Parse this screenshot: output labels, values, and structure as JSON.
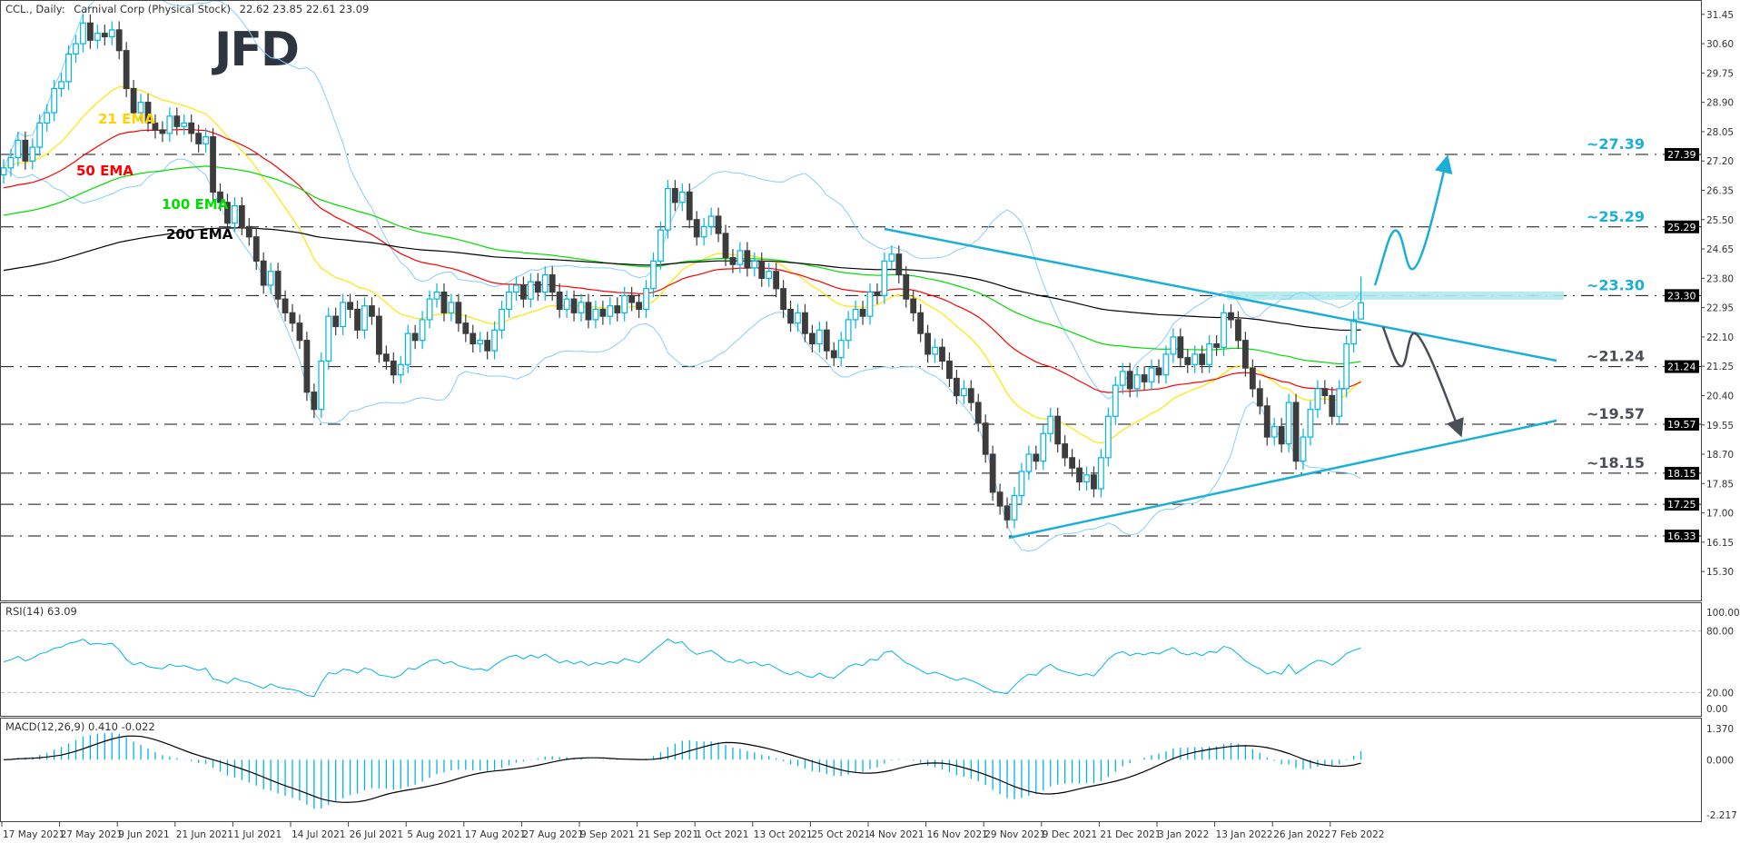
{
  "header": {
    "symbol": "CCL., Daily:",
    "name": "Carnival Corp (Physical Stock)",
    "ohlc": "22.62 23.85 22.61 23.09"
  },
  "logo": "JFD",
  "price_axis": {
    "ticks": [
      "31.45",
      "30.60",
      "29.75",
      "28.90",
      "28.05",
      "27.20",
      "26.35",
      "25.50",
      "24.65",
      "23.80",
      "22.95",
      "22.10",
      "21.25",
      "20.40",
      "19.55",
      "18.70",
      "17.85",
      "17.00",
      "16.15",
      "15.30"
    ]
  },
  "levels": [
    {
      "value": 27.39,
      "tag": "27.39",
      "label": "~27.39",
      "color": "#1aafd6"
    },
    {
      "value": 25.29,
      "tag": "25.29",
      "label": "~25.29",
      "color": "#1aafd6"
    },
    {
      "value": 23.3,
      "tag": "23.30",
      "label": "~23.30",
      "color": "#1aafd6"
    },
    {
      "value": 21.24,
      "tag": "21.24",
      "label": "~21.24",
      "color": "#4a4f57"
    },
    {
      "value": 19.57,
      "tag": "19.57",
      "label": "~19.57",
      "color": "#4a4f57"
    },
    {
      "value": 18.15,
      "tag": "18.15",
      "label": "~18.15",
      "color": "#4a4f57"
    },
    {
      "value": 17.25,
      "tag": "17.25",
      "label": "",
      "color": "#4a4f57"
    },
    {
      "value": 16.33,
      "tag": "16.33",
      "label": "",
      "color": "#4a4f57"
    }
  ],
  "ema_labels": [
    {
      "text": "21 EMA",
      "color": "#ffd200"
    },
    {
      "text": "50 EMA",
      "color": "#ff0000"
    },
    {
      "text": "100 EMA",
      "color": "#00dd00"
    },
    {
      "text": "200 EMA",
      "color": "#000000"
    }
  ],
  "rsi": {
    "title": "RSI(14) 63.09",
    "ticks": [
      "100.00",
      "80.00",
      "20.00",
      "0.00"
    ]
  },
  "macd": {
    "title": "MACD(12,26,9) 0.410 -0.022",
    "ticks": [
      "1.370",
      "0.000",
      "-2.217"
    ]
  },
  "dates": [
    "17 May 2021",
    "27 May 2021",
    "9 Jun 2021",
    "21 Jun 2021",
    "1 Jul 2021",
    "14 Jul 2021",
    "26 Jul 2021",
    "5 Aug 2021",
    "17 Aug 2021",
    "27 Aug 2021",
    "9 Sep 2021",
    "21 Sep 2021",
    "1 Oct 2021",
    "13 Oct 2021",
    "25 Oct 2021",
    "4 Nov 2021",
    "16 Nov 2021",
    "29 Nov 2021",
    "9 Dec 2021",
    "21 Dec 2021",
    "3 Jan 2022",
    "13 Jan 2022",
    "26 Jan 2022",
    "7 Feb 2022"
  ],
  "colors": {
    "bull": "#00b4e6",
    "bear": "#3c3c3c",
    "bands": "#87cefa",
    "trend": "#1aafd6",
    "bearish_path": "#4a4f57",
    "zone": "#aeeaee"
  },
  "chart_data": {
    "type": "candlestick",
    "ylim": [
      15.0,
      31.8
    ],
    "closes": [
      27.0,
      27.3,
      27.8,
      27.2,
      27.6,
      28.3,
      28.6,
      29.3,
      29.5,
      30.3,
      30.6,
      31.2,
      30.7,
      30.9,
      30.8,
      31.0,
      30.4,
      29.3,
      28.6,
      28.9,
      28.3,
      28.1,
      28.0,
      28.5,
      28.2,
      28.3,
      28.0,
      27.7,
      27.9,
      26.3,
      26.0,
      25.4,
      25.9,
      25.3,
      25.0,
      24.3,
      23.6,
      24.0,
      23.2,
      22.8,
      22.5,
      22.0,
      20.5,
      20.0,
      21.4,
      22.7,
      22.4,
      23.1,
      22.9,
      22.3,
      23.0,
      22.7,
      21.6,
      21.4,
      21.0,
      21.3,
      22.2,
      22.0,
      22.6,
      23.2,
      23.4,
      22.8,
      23.1,
      22.5,
      22.2,
      21.9,
      22.0,
      21.7,
      22.3,
      22.9,
      23.4,
      23.6,
      23.2,
      23.7,
      23.4,
      23.9,
      23.4,
      22.9,
      23.2,
      22.8,
      23.1,
      22.6,
      22.9,
      22.7,
      23.0,
      22.8,
      23.3,
      23.1,
      22.9,
      23.5,
      24.3,
      25.2,
      26.4,
      26.0,
      26.3,
      25.5,
      25.0,
      25.3,
      25.6,
      25.1,
      24.4,
      24.2,
      24.6,
      24.1,
      24.3,
      23.8,
      24.0,
      23.5,
      22.9,
      22.5,
      22.8,
      22.2,
      21.9,
      22.3,
      21.7,
      21.5,
      22.0,
      22.6,
      22.9,
      22.7,
      23.4,
      23.3,
      24.3,
      24.5,
      23.9,
      23.2,
      22.8,
      22.2,
      21.6,
      21.8,
      21.4,
      20.9,
      20.4,
      20.6,
      20.2,
      19.6,
      18.7,
      17.6,
      17.2,
      16.8,
      17.5,
      18.2,
      18.7,
      18.5,
      19.3,
      19.8,
      19.0,
      18.6,
      18.3,
      17.9,
      18.1,
      17.7,
      18.6,
      19.8,
      20.7,
      21.1,
      20.6,
      21.0,
      20.8,
      21.2,
      21.0,
      21.6,
      22.1,
      21.5,
      21.3,
      21.6,
      21.3,
      21.9,
      21.8,
      22.8,
      22.6,
      22.0,
      21.2,
      20.6,
      20.1,
      19.2,
      19.5,
      19.0,
      20.2,
      18.5,
      19.2,
      20.0,
      20.6,
      20.4,
      19.8,
      20.6,
      21.9,
      22.6,
      23.09
    ],
    "first_open": 26.8,
    "last_bar": {
      "open": 22.62,
      "high": 23.85,
      "low": 22.61,
      "close": 23.09
    },
    "ema_periods": [
      21,
      50,
      100,
      200
    ],
    "ema_start": [
      27.06,
      26.4,
      25.6,
      24.0
    ],
    "bollinger": {
      "period": 20,
      "deviations": 2
    },
    "rsi_period": 14,
    "rsi_range": [
      0,
      100
    ],
    "macd_params": [
      12,
      26,
      9
    ],
    "macd_range": [
      -2.217,
      1.37
    ],
    "trendlines": [
      {
        "name": "descending-resistance",
        "from": {
          "date": "4 Nov 2021",
          "price": 25.2
        },
        "to_price": 21.44
      },
      {
        "name": "ascending-support",
        "from": {
          "date": "29 Nov 2021",
          "price": 16.33
        },
        "to_price": 19.65
      }
    ]
  }
}
